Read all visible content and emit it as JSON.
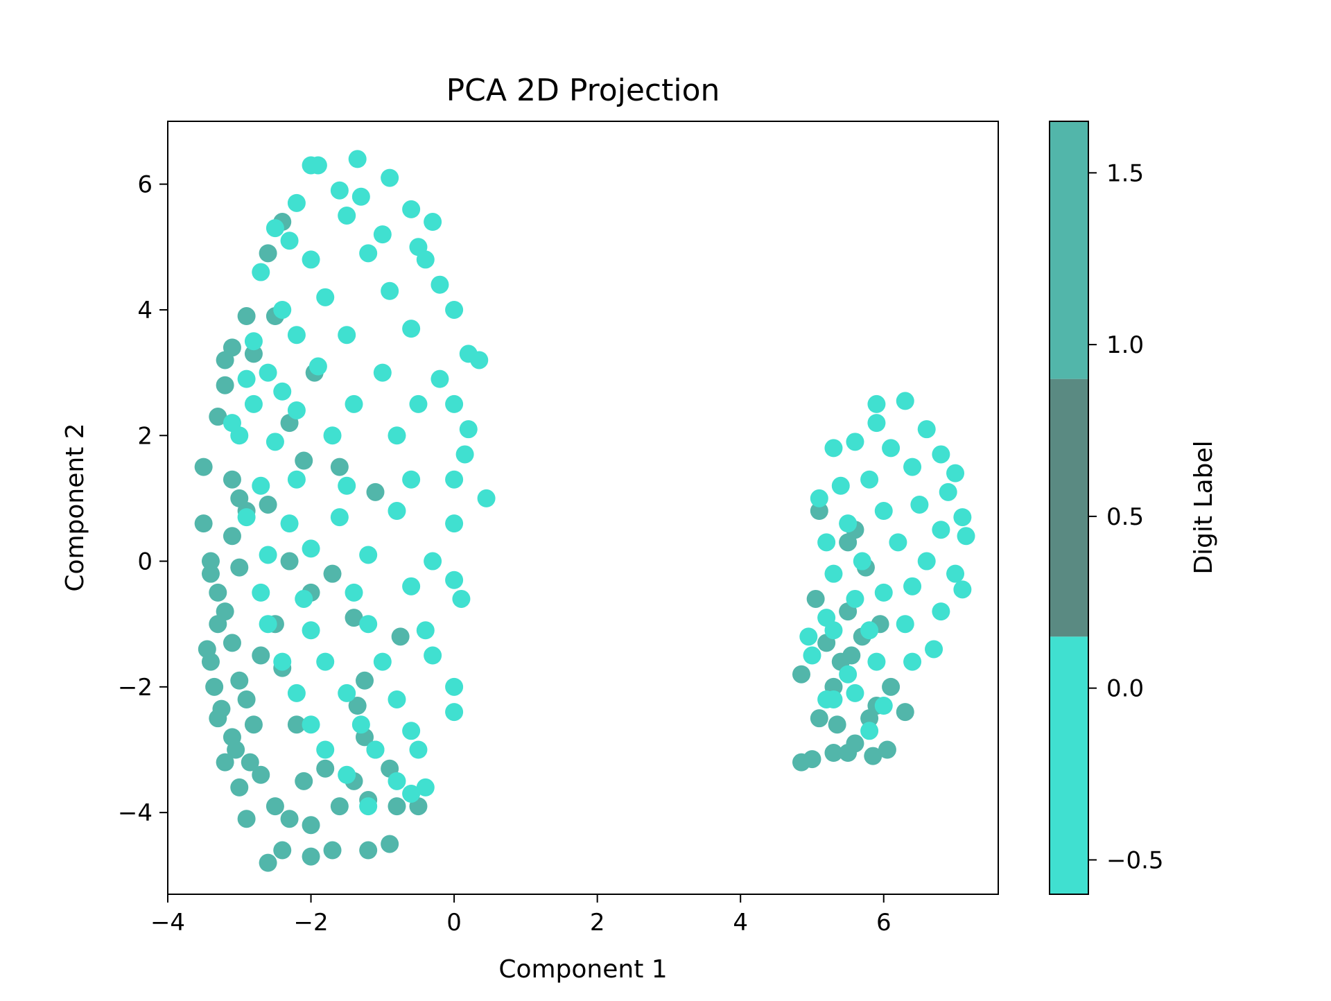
{
  "chart_data": {
    "type": "scatter",
    "title": "PCA 2D Projection",
    "xlabel": "Component 1",
    "ylabel": "Component 2",
    "xlim": [
      -4.0,
      7.6
    ],
    "ylim": [
      -5.3,
      7.0
    ],
    "xticks": [
      -4,
      -2,
      0,
      2,
      4,
      6
    ],
    "yticks": [
      -4,
      -2,
      0,
      2,
      4,
      6
    ],
    "xtick_labels": [
      "−4",
      "−2",
      "0",
      "2",
      "4",
      "6"
    ],
    "ytick_labels": [
      "−4",
      "−2",
      "0",
      "2",
      "4",
      "6"
    ],
    "grid": false,
    "colorbar": {
      "label": "Digit Label",
      "range": [
        -0.6,
        1.65
      ],
      "ticks": [
        -0.5,
        0.0,
        0.5,
        1.0,
        1.5
      ],
      "tick_labels": [
        "−0.5",
        "0.0",
        "0.5",
        "1.0",
        "1.5"
      ],
      "bands": [
        {
          "from": -0.6,
          "to": 0.15,
          "color": "#40e0d0"
        },
        {
          "from": 0.15,
          "to": 0.9,
          "color": "#5a8a82"
        },
        {
          "from": 0.9,
          "to": 1.65,
          "color": "#52b6aa"
        }
      ]
    },
    "series": [
      {
        "label_value": 1,
        "color": "#52b6aa",
        "points": [
          [
            -3.5,
            1.5
          ],
          [
            -3.5,
            0.6
          ],
          [
            -3.4,
            -0.2
          ],
          [
            -3.45,
            -1.4
          ],
          [
            -3.3,
            -2.5
          ],
          [
            -3.2,
            -3.2
          ],
          [
            -3.0,
            -3.6
          ],
          [
            -2.9,
            -4.1
          ],
          [
            -2.6,
            -4.8
          ],
          [
            -2.4,
            -4.6
          ],
          [
            -2.0,
            -4.7
          ],
          [
            -1.7,
            -4.6
          ],
          [
            -1.2,
            -4.6
          ],
          [
            -0.9,
            -4.5
          ],
          [
            -3.3,
            2.3
          ],
          [
            -3.2,
            2.8
          ],
          [
            -3.1,
            3.4
          ],
          [
            -3.2,
            3.2
          ],
          [
            -2.9,
            3.9
          ],
          [
            -2.5,
            3.9
          ],
          [
            -2.8,
            3.3
          ],
          [
            -3.0,
            1.0
          ],
          [
            -3.1,
            0.4
          ],
          [
            -3.2,
            -0.8
          ],
          [
            -3.0,
            -1.9
          ],
          [
            -2.8,
            -2.6
          ],
          [
            -2.7,
            -3.4
          ],
          [
            -2.5,
            -3.9
          ],
          [
            -2.3,
            -4.1
          ],
          [
            -2.0,
            -4.2
          ],
          [
            -1.6,
            -3.9
          ],
          [
            -1.2,
            -3.8
          ],
          [
            -0.8,
            -3.9
          ],
          [
            -0.5,
            -3.9
          ],
          [
            -3.3,
            -0.5
          ],
          [
            -3.3,
            -1.0
          ],
          [
            -3.35,
            -2.0
          ],
          [
            -3.1,
            -2.8
          ],
          [
            -3.0,
            -0.1
          ],
          [
            -2.9,
            0.8
          ],
          [
            -3.1,
            1.3
          ],
          [
            -2.6,
            0.9
          ],
          [
            -2.4,
            -1.7
          ],
          [
            -2.2,
            -2.6
          ],
          [
            -2.1,
            -3.5
          ],
          [
            -1.8,
            -3.3
          ],
          [
            -1.4,
            -3.5
          ],
          [
            -1.1,
            -3.0
          ],
          [
            -2.4,
            5.4
          ],
          [
            -2.6,
            4.9
          ],
          [
            -1.95,
            3.0
          ],
          [
            -2.3,
            2.2
          ],
          [
            -2.1,
            1.6
          ],
          [
            -1.6,
            1.5
          ],
          [
            -1.1,
            1.1
          ],
          [
            -1.4,
            -0.9
          ],
          [
            -0.75,
            -1.2
          ],
          [
            -1.25,
            -1.9
          ],
          [
            -1.35,
            -2.3
          ],
          [
            -1.25,
            -2.8
          ],
          [
            -0.9,
            -3.3
          ],
          [
            -2.5,
            -1.0
          ],
          [
            -2.7,
            -1.5
          ],
          [
            -2.9,
            -2.2
          ],
          [
            -2.3,
            0.0
          ],
          [
            -2.0,
            -0.5
          ],
          [
            -1.7,
            -0.2
          ],
          [
            -3.4,
            -1.6
          ],
          [
            -3.4,
            0.0
          ],
          [
            -3.1,
            -1.3
          ],
          [
            -3.25,
            -2.35
          ],
          [
            -3.05,
            -3.0
          ],
          [
            -2.85,
            -3.2
          ],
          [
            5.1,
            0.8
          ],
          [
            5.05,
            -0.6
          ],
          [
            5.2,
            -1.3
          ],
          [
            4.85,
            -1.8
          ],
          [
            5.4,
            -1.6
          ],
          [
            5.5,
            -0.8
          ],
          [
            5.6,
            0.5
          ],
          [
            5.3,
            -2.0
          ],
          [
            5.1,
            -2.5
          ],
          [
            5.35,
            -2.6
          ],
          [
            5.6,
            -2.9
          ],
          [
            5.5,
            -3.05
          ],
          [
            5.3,
            -3.05
          ],
          [
            5.0,
            -3.15
          ],
          [
            4.85,
            -3.2
          ],
          [
            5.85,
            -3.1
          ],
          [
            6.05,
            -3.0
          ],
          [
            6.3,
            -2.4
          ],
          [
            6.1,
            -2.0
          ],
          [
            5.9,
            -2.3
          ],
          [
            5.8,
            -2.5
          ],
          [
            5.7,
            -1.2
          ],
          [
            5.95,
            -1.0
          ],
          [
            5.55,
            -1.5
          ],
          [
            5.5,
            0.3
          ],
          [
            5.75,
            -0.1
          ]
        ]
      },
      {
        "label_value": 0,
        "color": "#40e0d0",
        "points": [
          [
            -2.0,
            6.3
          ],
          [
            -1.9,
            6.3
          ],
          [
            -1.35,
            6.4
          ],
          [
            -0.9,
            6.1
          ],
          [
            -1.6,
            5.9
          ],
          [
            -2.2,
            5.7
          ],
          [
            -0.6,
            5.6
          ],
          [
            -2.5,
            5.3
          ],
          [
            -1.5,
            5.5
          ],
          [
            -0.3,
            5.4
          ],
          [
            -2.7,
            4.6
          ],
          [
            -2.0,
            4.8
          ],
          [
            -1.2,
            4.9
          ],
          [
            -0.4,
            4.8
          ],
          [
            -0.2,
            4.4
          ],
          [
            0.0,
            4.0
          ],
          [
            0.2,
            3.3
          ],
          [
            0.35,
            3.2
          ],
          [
            -2.4,
            4.0
          ],
          [
            -1.8,
            4.2
          ],
          [
            -0.9,
            4.3
          ],
          [
            -2.8,
            3.5
          ],
          [
            -2.2,
            3.6
          ],
          [
            -1.5,
            3.6
          ],
          [
            -0.6,
            3.7
          ],
          [
            -2.6,
            3.0
          ],
          [
            -1.9,
            3.1
          ],
          [
            -1.0,
            3.0
          ],
          [
            -0.2,
            2.9
          ],
          [
            0.0,
            2.5
          ],
          [
            -2.8,
            2.5
          ],
          [
            -2.2,
            2.4
          ],
          [
            -1.4,
            2.5
          ],
          [
            -0.5,
            2.5
          ],
          [
            0.2,
            2.1
          ],
          [
            -3.0,
            2.0
          ],
          [
            -2.5,
            1.9
          ],
          [
            -1.7,
            2.0
          ],
          [
            -0.8,
            2.0
          ],
          [
            0.15,
            1.7
          ],
          [
            0.0,
            1.3
          ],
          [
            0.45,
            1.0
          ],
          [
            -2.7,
            1.2
          ],
          [
            -2.2,
            1.3
          ],
          [
            -1.5,
            1.2
          ],
          [
            -0.6,
            1.3
          ],
          [
            -2.9,
            0.7
          ],
          [
            -2.3,
            0.6
          ],
          [
            -1.6,
            0.7
          ],
          [
            -0.8,
            0.8
          ],
          [
            0.0,
            0.6
          ],
          [
            -2.6,
            0.1
          ],
          [
            -2.0,
            0.2
          ],
          [
            -1.2,
            0.1
          ],
          [
            -0.3,
            0.0
          ],
          [
            0.0,
            -0.3
          ],
          [
            -2.7,
            -0.5
          ],
          [
            -2.1,
            -0.6
          ],
          [
            -1.4,
            -0.5
          ],
          [
            -0.6,
            -0.4
          ],
          [
            0.1,
            -0.6
          ],
          [
            -2.6,
            -1.0
          ],
          [
            -2.0,
            -1.1
          ],
          [
            -1.2,
            -1.0
          ],
          [
            -0.4,
            -1.1
          ],
          [
            -2.4,
            -1.6
          ],
          [
            -1.8,
            -1.6
          ],
          [
            -1.0,
            -1.6
          ],
          [
            -0.3,
            -1.5
          ],
          [
            -2.2,
            -2.1
          ],
          [
            -1.5,
            -2.1
          ],
          [
            -0.8,
            -2.2
          ],
          [
            0.0,
            -2.0
          ],
          [
            -2.0,
            -2.6
          ],
          [
            -1.3,
            -2.6
          ],
          [
            -0.6,
            -2.7
          ],
          [
            0.0,
            -2.4
          ],
          [
            -1.8,
            -3.0
          ],
          [
            -1.1,
            -3.0
          ],
          [
            -0.5,
            -3.0
          ],
          [
            -1.5,
            -3.4
          ],
          [
            -0.8,
            -3.5
          ],
          [
            -0.4,
            -3.6
          ],
          [
            -1.2,
            -3.9
          ],
          [
            -0.6,
            -3.7
          ],
          [
            -2.4,
            2.7
          ],
          [
            -2.9,
            2.9
          ],
          [
            -3.1,
            2.2
          ],
          [
            -1.3,
            5.8
          ],
          [
            -1.0,
            5.2
          ],
          [
            -0.5,
            5.0
          ],
          [
            -2.3,
            5.1
          ],
          [
            5.9,
            2.5
          ],
          [
            6.3,
            2.55
          ],
          [
            6.6,
            2.1
          ],
          [
            5.9,
            2.2
          ],
          [
            5.3,
            1.8
          ],
          [
            5.6,
            1.9
          ],
          [
            6.1,
            1.8
          ],
          [
            6.8,
            1.7
          ],
          [
            7.0,
            1.4
          ],
          [
            5.1,
            1.0
          ],
          [
            5.4,
            1.2
          ],
          [
            5.8,
            1.3
          ],
          [
            6.4,
            1.5
          ],
          [
            6.9,
            1.1
          ],
          [
            7.1,
            0.7
          ],
          [
            7.15,
            0.4
          ],
          [
            5.2,
            0.3
          ],
          [
            5.5,
            0.6
          ],
          [
            6.0,
            0.8
          ],
          [
            6.5,
            0.9
          ],
          [
            6.8,
            0.5
          ],
          [
            5.3,
            -0.2
          ],
          [
            5.7,
            0.0
          ],
          [
            6.2,
            0.3
          ],
          [
            6.6,
            0.0
          ],
          [
            7.0,
            -0.2
          ],
          [
            7.1,
            -0.45
          ],
          [
            5.2,
            -0.9
          ],
          [
            5.6,
            -0.6
          ],
          [
            6.0,
            -0.5
          ],
          [
            6.4,
            -0.4
          ],
          [
            6.8,
            -0.8
          ],
          [
            4.95,
            -1.2
          ],
          [
            5.3,
            -1.1
          ],
          [
            5.8,
            -1.1
          ],
          [
            6.3,
            -1.0
          ],
          [
            6.7,
            -1.4
          ],
          [
            5.0,
            -1.5
          ],
          [
            5.5,
            -1.8
          ],
          [
            5.9,
            -1.6
          ],
          [
            6.4,
            -1.6
          ],
          [
            5.2,
            -2.2
          ],
          [
            5.6,
            -2.1
          ],
          [
            6.0,
            -2.3
          ],
          [
            5.3,
            -2.2
          ],
          [
            5.8,
            -2.7
          ]
        ]
      }
    ]
  }
}
